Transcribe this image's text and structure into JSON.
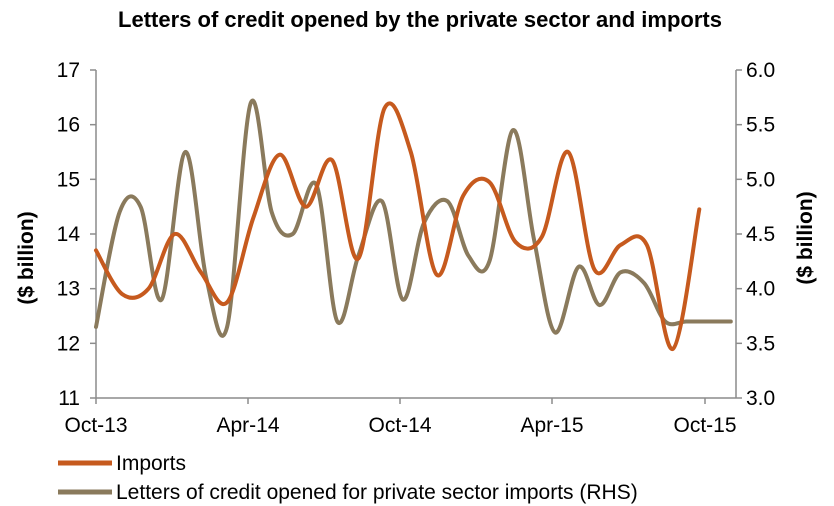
{
  "chart_data": {
    "type": "line",
    "title": "Letters of credit opened by the private sector and imports",
    "ylabel": "($ billion)",
    "y2label": "($ billion)",
    "x_ticks": [
      "Oct-13",
      "Apr-14",
      "Oct-14",
      "Apr-15",
      "Oct-15"
    ],
    "x_range": [
      0,
      24.4
    ],
    "ylim": [
      11,
      17
    ],
    "y_ticks": [
      "11",
      "12",
      "13",
      "14",
      "15",
      "16",
      "17"
    ],
    "y2lim": [
      3.0,
      6.0
    ],
    "y2_ticks": [
      "3.0",
      "3.5",
      "4.0",
      "4.5",
      "5.0",
      "5.5",
      "6.0"
    ],
    "legend_position": "bottom",
    "grid": false,
    "series": [
      {
        "name": "Imports",
        "axis": "left",
        "color": "#C65A1E",
        "x": [
          0,
          1,
          2,
          3,
          4,
          5,
          6,
          7,
          8,
          9,
          10,
          11,
          12,
          13,
          14,
          15,
          16,
          17,
          18,
          19,
          20,
          21,
          22,
          23
        ],
        "values": [
          13.7,
          12.9,
          13.0,
          14.0,
          13.3,
          12.75,
          14.3,
          15.45,
          14.5,
          15.35,
          13.55,
          16.3,
          15.5,
          13.25,
          14.7,
          14.95,
          13.85,
          13.95,
          15.5,
          13.35,
          13.8,
          13.8,
          11.9,
          14.45
        ]
      },
      {
        "name": "Letters of credit opened for private sector imports (RHS)",
        "axis": "right",
        "color": "#8A7A5C",
        "x": [
          0,
          0.9,
          1.7,
          2.5,
          3.4,
          4.2,
          5.0,
          5.9,
          6.7,
          7.5,
          8.4,
          9.2,
          10.0,
          10.9,
          11.7,
          12.5,
          13.4,
          14.2,
          15.0,
          15.9,
          16.7,
          17.5,
          18.4,
          19.2,
          20.0,
          20.9,
          21.7,
          22.5,
          23.4,
          24.2
        ],
        "values": [
          3.65,
          4.7,
          4.75,
          3.9,
          5.25,
          4.1,
          3.65,
          5.7,
          4.7,
          4.5,
          4.95,
          3.7,
          4.3,
          4.8,
          3.9,
          4.6,
          4.8,
          4.3,
          4.25,
          5.45,
          4.45,
          3.6,
          4.2,
          3.85,
          4.15,
          4.05,
          3.7,
          3.7,
          3.7,
          3.7
        ]
      }
    ]
  }
}
